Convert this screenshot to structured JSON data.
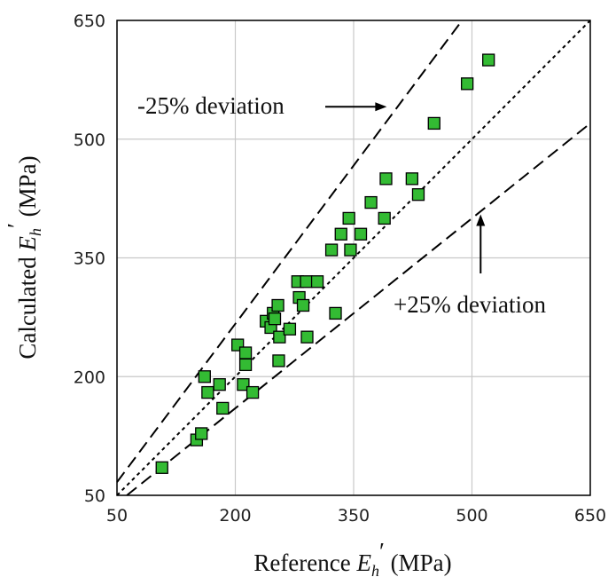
{
  "chart_data": {
    "type": "scatter",
    "title": "",
    "xlabel": {
      "prefix": "Reference ",
      "symbol": "E",
      "sub": "h",
      "prime": "′",
      "suffix": " (MPa)"
    },
    "ylabel": {
      "prefix": "Calculated ",
      "symbol": "E",
      "sub": "h",
      "prime": "′",
      "suffix": " (MPa)"
    },
    "xlim": [
      50,
      650
    ],
    "ylim": [
      50,
      650
    ],
    "xticks": [
      50,
      200,
      350,
      500,
      650
    ],
    "yticks": [
      50,
      200,
      350,
      500,
      650
    ],
    "xtick_labels": [
      "50",
      "200",
      "350",
      "500",
      "650"
    ],
    "ytick_labels": [
      "50",
      "200",
      "350",
      "500",
      "650"
    ],
    "grid": true,
    "marker_color": "#33bb33",
    "reference_lines": [
      {
        "kind": "equality",
        "slope": 1.0,
        "style": "dotted"
      },
      {
        "kind": "upper",
        "slope": 1.3333,
        "style": "dashed"
      },
      {
        "kind": "lower",
        "slope": 0.8,
        "style": "dashed"
      }
    ],
    "annotations": [
      {
        "text": "-25% deviation",
        "arrow": "right",
        "target_x": 392,
        "target_y": 541
      },
      {
        "text": "+25% deviation",
        "arrow": "up",
        "target_x": 511,
        "target_y": 405
      }
    ],
    "points": [
      {
        "x": 107,
        "y": 85
      },
      {
        "x": 151,
        "y": 120
      },
      {
        "x": 157,
        "y": 128
      },
      {
        "x": 161,
        "y": 200
      },
      {
        "x": 165,
        "y": 180
      },
      {
        "x": 180,
        "y": 190
      },
      {
        "x": 184,
        "y": 160
      },
      {
        "x": 203,
        "y": 240
      },
      {
        "x": 210,
        "y": 190
      },
      {
        "x": 213,
        "y": 230
      },
      {
        "x": 213,
        "y": 215
      },
      {
        "x": 222,
        "y": 180
      },
      {
        "x": 239,
        "y": 270
      },
      {
        "x": 245,
        "y": 262
      },
      {
        "x": 248,
        "y": 280
      },
      {
        "x": 250,
        "y": 273
      },
      {
        "x": 254,
        "y": 290
      },
      {
        "x": 255,
        "y": 220
      },
      {
        "x": 256,
        "y": 250
      },
      {
        "x": 269,
        "y": 260
      },
      {
        "x": 279,
        "y": 320
      },
      {
        "x": 281,
        "y": 300
      },
      {
        "x": 286,
        "y": 290
      },
      {
        "x": 290,
        "y": 320
      },
      {
        "x": 291,
        "y": 250
      },
      {
        "x": 304,
        "y": 320
      },
      {
        "x": 322,
        "y": 360
      },
      {
        "x": 327,
        "y": 280
      },
      {
        "x": 334,
        "y": 380
      },
      {
        "x": 344,
        "y": 400
      },
      {
        "x": 346,
        "y": 360
      },
      {
        "x": 359,
        "y": 380
      },
      {
        "x": 372,
        "y": 420
      },
      {
        "x": 389,
        "y": 400
      },
      {
        "x": 391,
        "y": 450
      },
      {
        "x": 424,
        "y": 450
      },
      {
        "x": 432,
        "y": 430
      },
      {
        "x": 452,
        "y": 520
      },
      {
        "x": 494,
        "y": 570
      },
      {
        "x": 521,
        "y": 600
      }
    ]
  }
}
